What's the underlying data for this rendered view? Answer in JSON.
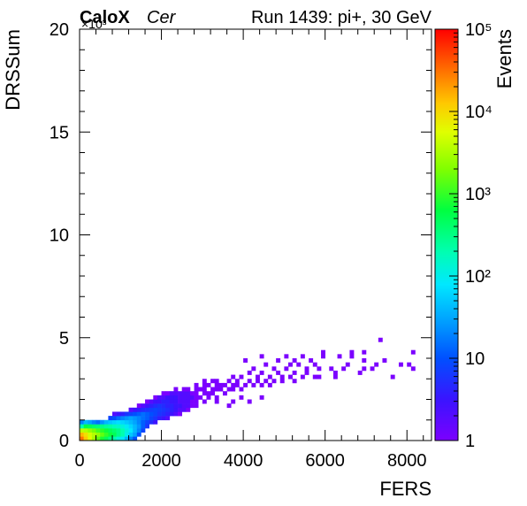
{
  "header": {
    "brand": "CaloX",
    "channel": "Cer",
    "run_label": "Run 1439: pi+, 30 GeV"
  },
  "chart_data": {
    "type": "heatmap",
    "title": "Run 1439: pi+, 30 GeV",
    "xlabel": "FERS",
    "ylabel": "DRSSum",
    "y_multiplier_label": "×10³",
    "xlim": [
      0,
      8600
    ],
    "ylim": [
      0,
      20000
    ],
    "x_ticks": [
      0,
      2000,
      4000,
      6000,
      8000
    ],
    "x_tick_labels": [
      "0",
      "2000",
      "4000",
      "6000",
      "8000"
    ],
    "y_ticks": [
      0,
      5000,
      10000,
      15000,
      20000
    ],
    "y_tick_labels": [
      "0",
      "5",
      "10",
      "15",
      "20"
    ],
    "colorbar": {
      "label": "Events",
      "scale": "log",
      "range": [
        1,
        100000
      ],
      "tick_labels": [
        "1",
        "10",
        "10²",
        "10³",
        "10⁴",
        "10⁵"
      ]
    },
    "bin_width_x": 100,
    "bin_width_y": 200,
    "grid": false,
    "bins": [
      [
        0,
        0,
        30000
      ],
      [
        100,
        0,
        12000
      ],
      [
        200,
        0,
        6000
      ],
      [
        300,
        0,
        3000
      ],
      [
        400,
        0,
        1500
      ],
      [
        500,
        0,
        800
      ],
      [
        600,
        0,
        500
      ],
      [
        700,
        0,
        300
      ],
      [
        800,
        0,
        200
      ],
      [
        900,
        0,
        120
      ],
      [
        1000,
        0,
        80
      ],
      [
        1100,
        0,
        40
      ],
      [
        1200,
        0,
        20
      ],
      [
        1300,
        0,
        10
      ],
      [
        0,
        200,
        15000
      ],
      [
        100,
        200,
        9000
      ],
      [
        200,
        200,
        5000
      ],
      [
        300,
        200,
        3500
      ],
      [
        400,
        200,
        2500
      ],
      [
        500,
        200,
        1500
      ],
      [
        600,
        200,
        1000
      ],
      [
        700,
        200,
        700
      ],
      [
        800,
        200,
        500
      ],
      [
        900,
        200,
        300
      ],
      [
        1000,
        200,
        200
      ],
      [
        1100,
        200,
        100
      ],
      [
        1200,
        200,
        50
      ],
      [
        1300,
        200,
        30
      ],
      [
        1400,
        200,
        10
      ],
      [
        0,
        400,
        4000
      ],
      [
        100,
        400,
        3500
      ],
      [
        200,
        400,
        2500
      ],
      [
        300,
        400,
        1800
      ],
      [
        400,
        400,
        1200
      ],
      [
        500,
        400,
        900
      ],
      [
        600,
        400,
        700
      ],
      [
        700,
        400,
        500
      ],
      [
        800,
        400,
        400
      ],
      [
        900,
        400,
        300
      ],
      [
        1000,
        400,
        200
      ],
      [
        1100,
        400,
        120
      ],
      [
        1200,
        400,
        80
      ],
      [
        1300,
        400,
        40
      ],
      [
        1400,
        400,
        20
      ],
      [
        1500,
        400,
        8
      ],
      [
        0,
        600,
        200
      ],
      [
        100,
        600,
        600
      ],
      [
        200,
        600,
        500
      ],
      [
        300,
        600,
        400
      ],
      [
        400,
        600,
        350
      ],
      [
        500,
        600,
        300
      ],
      [
        600,
        600,
        250
      ],
      [
        700,
        600,
        220
      ],
      [
        800,
        600,
        180
      ],
      [
        900,
        600,
        150
      ],
      [
        1000,
        600,
        120
      ],
      [
        1100,
        600,
        90
      ],
      [
        1200,
        600,
        60
      ],
      [
        1300,
        600,
        40
      ],
      [
        1400,
        600,
        25
      ],
      [
        1500,
        600,
        12
      ],
      [
        1600,
        600,
        6
      ],
      [
        0,
        800,
        20
      ],
      [
        100,
        800,
        40
      ],
      [
        200,
        800,
        30
      ],
      [
        300,
        800,
        20
      ],
      [
        400,
        800,
        15
      ],
      [
        500,
        800,
        25
      ],
      [
        600,
        800,
        40
      ],
      [
        700,
        800,
        50
      ],
      [
        800,
        800,
        60
      ],
      [
        900,
        800,
        70
      ],
      [
        1000,
        800,
        60
      ],
      [
        1100,
        800,
        50
      ],
      [
        1200,
        800,
        40
      ],
      [
        1300,
        800,
        30
      ],
      [
        1400,
        800,
        20
      ],
      [
        1500,
        800,
        12
      ],
      [
        1600,
        800,
        8
      ],
      [
        1700,
        800,
        5
      ],
      [
        1800,
        800,
        3
      ],
      [
        700,
        1000,
        8
      ],
      [
        800,
        1000,
        10
      ],
      [
        900,
        1000,
        15
      ],
      [
        1000,
        1000,
        20
      ],
      [
        1100,
        1000,
        25
      ],
      [
        1200,
        1000,
        30
      ],
      [
        1300,
        1000,
        25
      ],
      [
        1400,
        1000,
        20
      ],
      [
        1500,
        1000,
        15
      ],
      [
        1600,
        1000,
        12
      ],
      [
        1700,
        1000,
        8
      ],
      [
        1800,
        1000,
        6
      ],
      [
        1900,
        1000,
        4
      ],
      [
        2000,
        1000,
        3
      ],
      [
        2100,
        1000,
        2
      ],
      [
        800,
        1200,
        2
      ],
      [
        900,
        1200,
        3
      ],
      [
        1000,
        1200,
        4
      ],
      [
        1100,
        1200,
        6
      ],
      [
        1200,
        1200,
        8
      ],
      [
        1300,
        1200,
        10
      ],
      [
        1400,
        1200,
        12
      ],
      [
        1500,
        1200,
        15
      ],
      [
        1600,
        1200,
        12
      ],
      [
        1700,
        1200,
        10
      ],
      [
        1800,
        1200,
        8
      ],
      [
        1900,
        1200,
        6
      ],
      [
        2000,
        1200,
        5
      ],
      [
        2100,
        1200,
        4
      ],
      [
        2200,
        1200,
        3
      ],
      [
        2300,
        1200,
        2
      ],
      [
        2400,
        1200,
        1
      ],
      [
        1200,
        1400,
        2
      ],
      [
        1300,
        1400,
        3
      ],
      [
        1400,
        1400,
        4
      ],
      [
        1500,
        1400,
        5
      ],
      [
        1600,
        1400,
        6
      ],
      [
        1700,
        1400,
        7
      ],
      [
        1800,
        1400,
        8
      ],
      [
        1900,
        1400,
        7
      ],
      [
        2000,
        1400,
        6
      ],
      [
        2100,
        1400,
        5
      ],
      [
        2200,
        1400,
        4
      ],
      [
        2300,
        1400,
        3
      ],
      [
        2400,
        1400,
        2
      ],
      [
        2500,
        1400,
        2
      ],
      [
        2600,
        1400,
        1
      ],
      [
        1400,
        1600,
        1
      ],
      [
        1500,
        1600,
        2
      ],
      [
        1600,
        1600,
        3
      ],
      [
        1700,
        1600,
        4
      ],
      [
        1800,
        1600,
        5
      ],
      [
        1900,
        1600,
        6
      ],
      [
        2000,
        1600,
        5
      ],
      [
        2100,
        1600,
        4
      ],
      [
        2200,
        1600,
        4
      ],
      [
        2300,
        1600,
        3
      ],
      [
        2400,
        1600,
        3
      ],
      [
        2500,
        1600,
        2
      ],
      [
        2600,
        1600,
        2
      ],
      [
        2700,
        1600,
        1
      ],
      [
        2800,
        1600,
        1
      ],
      [
        1600,
        1800,
        1
      ],
      [
        1700,
        1800,
        2
      ],
      [
        1800,
        1800,
        3
      ],
      [
        1900,
        1800,
        3
      ],
      [
        2000,
        1800,
        4
      ],
      [
        2100,
        1800,
        4
      ],
      [
        2200,
        1800,
        3
      ],
      [
        2300,
        1800,
        3
      ],
      [
        2400,
        1800,
        2
      ],
      [
        2500,
        1800,
        2
      ],
      [
        2600,
        1800,
        2
      ],
      [
        2700,
        1800,
        1
      ],
      [
        2800,
        1800,
        1
      ],
      [
        3000,
        1800,
        1
      ],
      [
        1800,
        2000,
        1
      ],
      [
        1900,
        2000,
        2
      ],
      [
        2000,
        2000,
        2
      ],
      [
        2100,
        2000,
        3
      ],
      [
        2200,
        2000,
        3
      ],
      [
        2300,
        2000,
        3
      ],
      [
        2400,
        2000,
        2
      ],
      [
        2500,
        2000,
        2
      ],
      [
        2600,
        2000,
        2
      ],
      [
        2700,
        2000,
        2
      ],
      [
        2800,
        2000,
        1
      ],
      [
        2900,
        2000,
        1
      ],
      [
        3100,
        2000,
        1
      ],
      [
        3300,
        2000,
        1
      ],
      [
        2000,
        2200,
        1
      ],
      [
        2100,
        2200,
        1
      ],
      [
        2200,
        2200,
        2
      ],
      [
        2300,
        2200,
        2
      ],
      [
        2400,
        2200,
        2
      ],
      [
        2500,
        2200,
        2
      ],
      [
        2600,
        2200,
        2
      ],
      [
        2700,
        2200,
        1
      ],
      [
        2800,
        2200,
        1
      ],
      [
        3000,
        2200,
        1
      ],
      [
        3100,
        2200,
        1
      ],
      [
        3200,
        2200,
        1
      ],
      [
        3500,
        2200,
        1
      ],
      [
        2300,
        2400,
        1
      ],
      [
        2500,
        2400,
        1
      ],
      [
        2600,
        2400,
        1
      ],
      [
        2800,
        2400,
        1
      ],
      [
        2900,
        2400,
        1
      ],
      [
        3000,
        2400,
        1
      ],
      [
        3200,
        2400,
        1
      ],
      [
        3300,
        2400,
        1
      ],
      [
        3400,
        2400,
        1
      ],
      [
        3600,
        2400,
        1
      ],
      [
        3700,
        2400,
        1
      ],
      [
        3900,
        2400,
        1
      ],
      [
        2800,
        2600,
        1
      ],
      [
        3000,
        2600,
        1
      ],
      [
        3100,
        2600,
        1
      ],
      [
        3300,
        2600,
        1
      ],
      [
        3400,
        2600,
        1
      ],
      [
        3500,
        2600,
        1
      ],
      [
        3700,
        2600,
        1
      ],
      [
        3800,
        2600,
        1
      ],
      [
        4000,
        2600,
        1
      ],
      [
        4200,
        2600,
        1
      ],
      [
        4400,
        2600,
        1
      ],
      [
        4600,
        2600,
        1
      ],
      [
        3000,
        2800,
        1
      ],
      [
        3200,
        2800,
        1
      ],
      [
        3300,
        2800,
        1
      ],
      [
        3600,
        2800,
        1
      ],
      [
        3800,
        2800,
        1
      ],
      [
        4100,
        2800,
        1
      ],
      [
        4300,
        2800,
        1
      ],
      [
        4500,
        2800,
        1
      ],
      [
        4700,
        2800,
        1
      ],
      [
        4900,
        2800,
        1
      ],
      [
        5200,
        2800,
        1
      ],
      [
        3700,
        3000,
        1
      ],
      [
        3900,
        3000,
        1
      ],
      [
        4300,
        3000,
        1
      ],
      [
        4600,
        3000,
        1
      ],
      [
        4900,
        3000,
        1
      ],
      [
        5100,
        3000,
        1
      ],
      [
        5400,
        3000,
        1
      ],
      [
        5800,
        3000,
        1
      ],
      [
        4100,
        3200,
        1
      ],
      [
        4400,
        3200,
        1
      ],
      [
        4800,
        3200,
        1
      ],
      [
        5200,
        3200,
        1
      ],
      [
        5500,
        3200,
        1
      ],
      [
        6200,
        3200,
        1
      ],
      [
        6800,
        3200,
        1
      ],
      [
        4200,
        3400,
        1
      ],
      [
        4700,
        3400,
        1
      ],
      [
        5000,
        3400,
        1
      ],
      [
        5500,
        3400,
        1
      ],
      [
        5800,
        3400,
        1
      ],
      [
        6100,
        3400,
        1
      ],
      [
        6400,
        3400,
        1
      ],
      [
        7100,
        3400,
        1
      ],
      [
        4500,
        3600,
        1
      ],
      [
        5100,
        3600,
        1
      ],
      [
        5300,
        3600,
        1
      ],
      [
        5700,
        3600,
        1
      ],
      [
        6500,
        3600,
        1
      ],
      [
        7200,
        3600,
        1
      ],
      [
        8000,
        3600,
        1
      ],
      [
        4000,
        3800,
        1
      ],
      [
        4800,
        3800,
        1
      ],
      [
        5200,
        3800,
        1
      ],
      [
        5600,
        3800,
        1
      ],
      [
        6900,
        3800,
        1
      ],
      [
        7400,
        3800,
        1
      ],
      [
        4400,
        4000,
        1
      ],
      [
        5000,
        4000,
        1
      ],
      [
        5400,
        4000,
        1
      ],
      [
        5900,
        4000,
        1
      ],
      [
        6300,
        4000,
        1
      ],
      [
        6600,
        4000,
        1
      ],
      [
        5900,
        4200,
        1
      ],
      [
        6600,
        4200,
        1
      ],
      [
        6900,
        4200,
        1
      ],
      [
        8100,
        4200,
        1
      ],
      [
        7300,
        4800,
        1
      ],
      [
        3700,
        1800,
        1
      ],
      [
        4100,
        1800,
        1
      ],
      [
        3900,
        2000,
        1
      ],
      [
        4400,
        2000,
        1
      ],
      [
        3600,
        1600,
        1
      ],
      [
        3300,
        1800,
        1
      ],
      [
        5700,
        3000,
        1
      ],
      [
        6200,
        3000,
        1
      ],
      [
        7600,
        3000,
        1
      ],
      [
        8100,
        3400,
        1
      ],
      [
        7800,
        3600,
        1
      ],
      [
        6900,
        3400,
        1
      ]
    ]
  }
}
